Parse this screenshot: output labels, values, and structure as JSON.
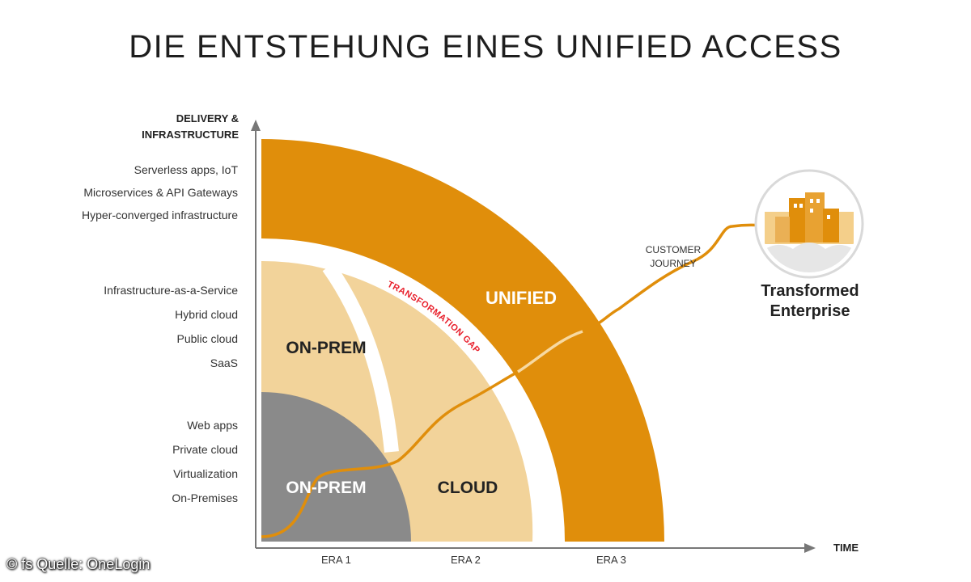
{
  "title": "DIE ENTSTEHUNG EINES UNIFIED ACCESS",
  "y_axis": {
    "title_line1": "DELIVERY &",
    "title_line2": "INFRASTRUCTURE",
    "labels_top": [
      "Serverless apps, IoT",
      "Microservices & API Gateways",
      "Hyper-converged infrastructure"
    ],
    "labels_mid": [
      "Infrastructure-as-a-Service",
      "Hybrid cloud",
      "Public cloud",
      "SaaS"
    ],
    "labels_bottom": [
      "Web apps",
      "Private cloud",
      "Virtualization",
      "On-Premises"
    ]
  },
  "x_axis": {
    "title": "TIME",
    "eras": [
      "ERA 1",
      "ERA 2",
      "ERA 3"
    ]
  },
  "regions": {
    "unified": "UNIFIED",
    "on_prem_outer": "ON-PREM",
    "cloud": "CLOUD",
    "on_prem_inner": "ON-PREM"
  },
  "gap_label": "TRANSFORMATION GAP",
  "journey_line1": "CUSTOMER",
  "journey_line2": "JOURNEY",
  "destination_line1": "Transformed",
  "destination_line2": "Enterprise",
  "credit": "© fs Quelle: OneLogin",
  "colors": {
    "unified": "#e08e0b",
    "light": "#f2d39a",
    "gray": "#8a8a8a",
    "gap": "#e8202c",
    "axis": "#777777"
  }
}
